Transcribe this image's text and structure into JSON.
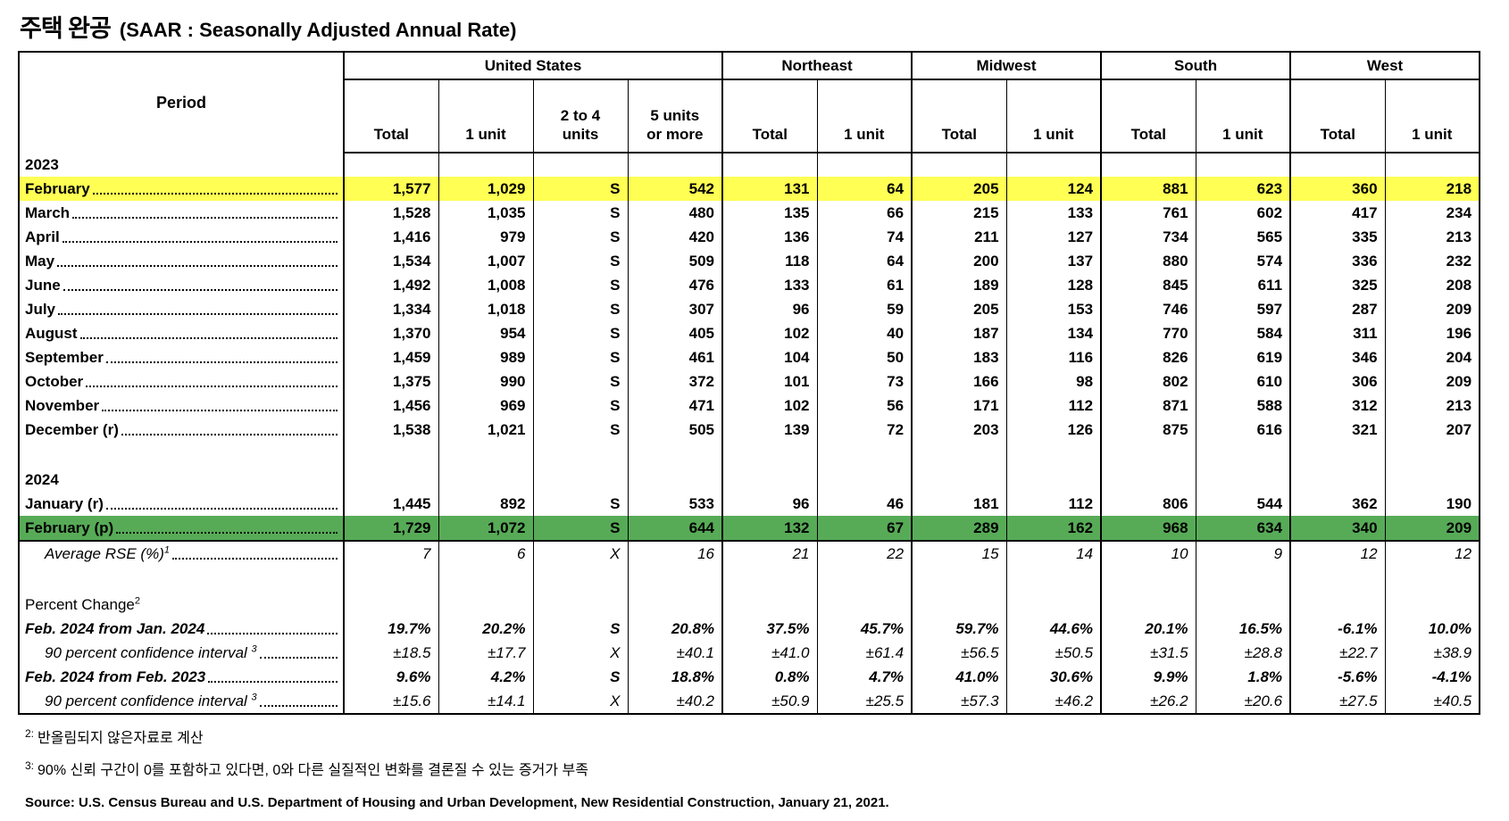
{
  "title": {
    "korean": "주택 완공",
    "english": "(SAAR : Seasonally Adjusted Annual Rate)"
  },
  "table": {
    "period_label": "Period",
    "groups": [
      {
        "label": "United States",
        "span": 4
      },
      {
        "label": "Northeast",
        "span": 2
      },
      {
        "label": "Midwest",
        "span": 2
      },
      {
        "label": "South",
        "span": 2
      },
      {
        "label": "West",
        "span": 2
      }
    ],
    "columns": [
      "Total",
      "1 unit",
      "2 to 4\nunits",
      "5 units\nor more",
      "Total",
      "1 unit",
      "Total",
      "1 unit",
      "Total",
      "1 unit",
      "Total",
      "1 unit"
    ],
    "rows": [
      {
        "type": "section",
        "label": "2023"
      },
      {
        "type": "data",
        "label": "February",
        "style": "yellow",
        "values": [
          "1,577",
          "1,029",
          "S",
          "542",
          "131",
          "64",
          "205",
          "124",
          "881",
          "623",
          "360",
          "218"
        ]
      },
      {
        "type": "data",
        "label": "March",
        "values": [
          "1,528",
          "1,035",
          "S",
          "480",
          "135",
          "66",
          "215",
          "133",
          "761",
          "602",
          "417",
          "234"
        ]
      },
      {
        "type": "data",
        "label": "April",
        "values": [
          "1,416",
          "979",
          "S",
          "420",
          "136",
          "74",
          "211",
          "127",
          "734",
          "565",
          "335",
          "213"
        ]
      },
      {
        "type": "data",
        "label": "May",
        "values": [
          "1,534",
          "1,007",
          "S",
          "509",
          "118",
          "64",
          "200",
          "137",
          "880",
          "574",
          "336",
          "232"
        ]
      },
      {
        "type": "data",
        "label": "June",
        "values": [
          "1,492",
          "1,008",
          "S",
          "476",
          "133",
          "61",
          "189",
          "128",
          "845",
          "611",
          "325",
          "208"
        ]
      },
      {
        "type": "data",
        "label": "July",
        "values": [
          "1,334",
          "1,018",
          "S",
          "307",
          "96",
          "59",
          "205",
          "153",
          "746",
          "597",
          "287",
          "209"
        ]
      },
      {
        "type": "data",
        "label": "August",
        "values": [
          "1,370",
          "954",
          "S",
          "405",
          "102",
          "40",
          "187",
          "134",
          "770",
          "584",
          "311",
          "196"
        ]
      },
      {
        "type": "data",
        "label": "September",
        "values": [
          "1,459",
          "989",
          "S",
          "461",
          "104",
          "50",
          "183",
          "116",
          "826",
          "619",
          "346",
          "204"
        ]
      },
      {
        "type": "data",
        "label": "October",
        "values": [
          "1,375",
          "990",
          "S",
          "372",
          "101",
          "73",
          "166",
          "98",
          "802",
          "610",
          "306",
          "209"
        ]
      },
      {
        "type": "data",
        "label": "November",
        "values": [
          "1,456",
          "969",
          "S",
          "471",
          "102",
          "56",
          "171",
          "112",
          "871",
          "588",
          "312",
          "213"
        ]
      },
      {
        "type": "data",
        "label": "December (r)",
        "values": [
          "1,538",
          "1,021",
          "S",
          "505",
          "139",
          "72",
          "203",
          "126",
          "875",
          "616",
          "321",
          "207"
        ]
      },
      {
        "type": "blank"
      },
      {
        "type": "section",
        "label": "2024"
      },
      {
        "type": "data",
        "label": "January (r)",
        "values": [
          "1,445",
          "892",
          "S",
          "533",
          "96",
          "46",
          "181",
          "112",
          "806",
          "544",
          "362",
          "190"
        ]
      },
      {
        "type": "data",
        "label": "February (p)",
        "style": "green",
        "values": [
          "1,729",
          "1,072",
          "S",
          "644",
          "132",
          "67",
          "289",
          "162",
          "968",
          "634",
          "340",
          "209"
        ]
      },
      {
        "type": "data",
        "label": "Average RSE (%)",
        "sup": "1",
        "style": "italic",
        "indent": 1,
        "values": [
          "7",
          "6",
          "X",
          "16",
          "21",
          "22",
          "15",
          "14",
          "10",
          "9",
          "12",
          "12"
        ]
      },
      {
        "type": "blank"
      },
      {
        "type": "label",
        "label": "Percent Change",
        "sup": "2"
      },
      {
        "type": "data",
        "label": "Feb. 2024 from Jan. 2024",
        "style": "bold-italic",
        "values": [
          "19.7%",
          "20.2%",
          "S",
          "20.8%",
          "37.5%",
          "45.7%",
          "59.7%",
          "44.6%",
          "20.1%",
          "16.5%",
          "-6.1%",
          "10.0%"
        ]
      },
      {
        "type": "data",
        "label": "90 percent confidence interval ",
        "sup": "3",
        "style": "italic",
        "indent": 1,
        "values": [
          "±18.5",
          "±17.7",
          "X",
          "±40.1",
          "±41.0",
          "±61.4",
          "±56.5",
          "±50.5",
          "±31.5",
          "±28.8",
          "±22.7",
          "±38.9"
        ]
      },
      {
        "type": "data",
        "label": "Feb. 2024 from Feb. 2023",
        "style": "bold-italic",
        "values": [
          "9.6%",
          "4.2%",
          "S",
          "18.8%",
          "0.8%",
          "4.7%",
          "41.0%",
          "30.6%",
          "9.9%",
          "1.8%",
          "-5.6%",
          "-4.1%"
        ]
      },
      {
        "type": "data",
        "label": "90 percent confidence interval ",
        "sup": "3",
        "style": "italic",
        "indent": 1,
        "values": [
          "±15.6",
          "±14.1",
          "X",
          "±40.2",
          "±50.9",
          "±25.5",
          "±57.3",
          "±46.2",
          "±26.2",
          "±20.6",
          "±27.5",
          "±40.5"
        ]
      }
    ]
  },
  "footnotes": [
    {
      "marker": "2:",
      "text": "반올림되지 않은자료로 계산"
    },
    {
      "marker": "3:",
      "text": "90% 신뢰 구간이 0를 포함하고 있다면, 0와 다른 실질적인 변화를 결론질 수 있는 증거가 부족"
    }
  ],
  "source": "Source: U.S. Census Bureau and U.S. Department of Housing and Urban Development, New Residential Construction, January 21, 2021.",
  "colors": {
    "highlight_yellow": "#FFFF54",
    "highlight_green": "#57AB57"
  }
}
